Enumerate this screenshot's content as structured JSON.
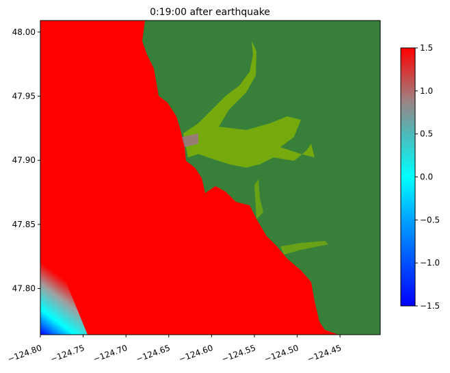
{
  "chart_data": {
    "type": "heatmap",
    "title": "0:19:00 after earthquake",
    "xlabel": "",
    "ylabel": "",
    "xlim": [
      -124.8,
      -124.403
    ],
    "ylim": [
      47.764,
      48.009
    ],
    "xticks": [
      -124.8,
      -124.75,
      -124.7,
      -124.65,
      -124.6,
      -124.55,
      -124.5,
      -124.45
    ],
    "xtick_labels": [
      "−124.80",
      "−124.75",
      "−124.70",
      "−124.65",
      "−124.60",
      "−124.55",
      "−124.50",
      "−124.45"
    ],
    "yticks": [
      47.8,
      47.85,
      47.9,
      47.95,
      48.0
    ],
    "ytick_labels": [
      "47.80",
      "47.85",
      "47.90",
      "47.95",
      "48.00"
    ],
    "colorbar": {
      "range": [
        -1.5,
        1.5
      ],
      "ticks": [
        -1.5,
        -1.0,
        -0.5,
        0.0,
        0.5,
        1.0,
        1.5
      ],
      "tick_labels": [
        "−1.5",
        "−1.0",
        "−0.5",
        "0.0",
        "0.5",
        "1.0",
        "1.5"
      ]
    },
    "colors": {
      "land": "#38803a",
      "inundation": "#8ab800",
      "high": "#ff0000",
      "mid": "#00ffff",
      "low": "#0000ff"
    }
  }
}
